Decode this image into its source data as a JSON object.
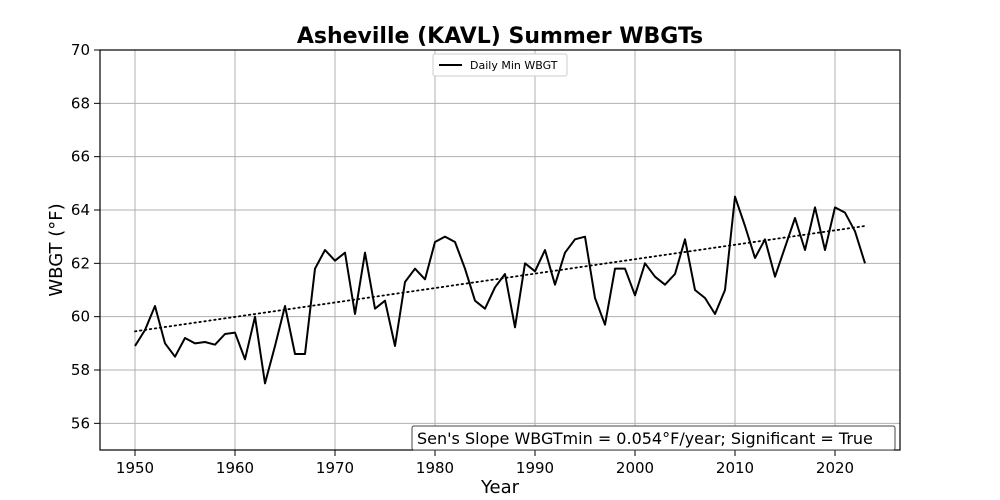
{
  "chart_data": {
    "type": "line",
    "title": "Asheville (KAVL) Summer WBGTs",
    "xlabel": "Year",
    "ylabel": "WBGT (°F)",
    "xlim": [
      1946.5,
      2026.5
    ],
    "ylim": [
      55,
      70
    ],
    "x_ticks": [
      1950,
      1960,
      1970,
      1980,
      1990,
      2000,
      2010,
      2020
    ],
    "y_ticks": [
      56,
      58,
      60,
      62,
      64,
      66,
      68,
      70
    ],
    "grid": true,
    "legend_position": "top-center",
    "series": [
      {
        "name": "Daily Min WBGT",
        "style": "solid",
        "color": "#000000",
        "x": [
          1950,
          1951,
          1952,
          1953,
          1954,
          1955,
          1956,
          1957,
          1958,
          1959,
          1960,
          1961,
          1962,
          1963,
          1964,
          1965,
          1966,
          1967,
          1968,
          1969,
          1970,
          1971,
          1972,
          1973,
          1974,
          1975,
          1976,
          1977,
          1978,
          1979,
          1980,
          1981,
          1982,
          1983,
          1984,
          1985,
          1986,
          1987,
          1988,
          1989,
          1990,
          1991,
          1992,
          1993,
          1994,
          1995,
          1996,
          1997,
          1998,
          1999,
          2000,
          2001,
          2002,
          2003,
          2004,
          2005,
          2006,
          2007,
          2008,
          2009,
          2010,
          2011,
          2012,
          2013,
          2014,
          2015,
          2016,
          2017,
          2018,
          2019,
          2020,
          2021,
          2022,
          2023
        ],
        "y": [
          58.9,
          59.5,
          60.4,
          59.0,
          58.5,
          59.2,
          59.0,
          59.05,
          58.95,
          59.35,
          59.4,
          58.4,
          60.0,
          57.5,
          58.9,
          60.4,
          58.6,
          58.6,
          61.8,
          62.5,
          62.1,
          62.4,
          60.1,
          62.4,
          60.3,
          60.6,
          58.9,
          61.3,
          61.8,
          61.4,
          62.8,
          63.0,
          62.8,
          61.8,
          60.6,
          60.3,
          61.1,
          61.6,
          59.6,
          62.0,
          61.7,
          62.5,
          61.2,
          62.4,
          62.9,
          63.0,
          60.7,
          59.7,
          61.8,
          61.8,
          60.8,
          62.0,
          61.5,
          61.2,
          61.6,
          62.9,
          61.0,
          60.7,
          60.1,
          61.0,
          64.5,
          63.4,
          62.2,
          62.9,
          61.5,
          62.6,
          63.7,
          62.5,
          64.1,
          62.5,
          64.1,
          63.9,
          63.2,
          62.0
        ]
      },
      {
        "name": "",
        "style": "dotted",
        "color": "#000000",
        "x": [
          1950,
          2023
        ],
        "y": [
          59.45,
          63.4
        ]
      }
    ],
    "annotations": [
      {
        "text": "Sen's Slope WBGTmin = 0.054°F/year; Significant = True",
        "position": "bottom-right"
      }
    ]
  }
}
